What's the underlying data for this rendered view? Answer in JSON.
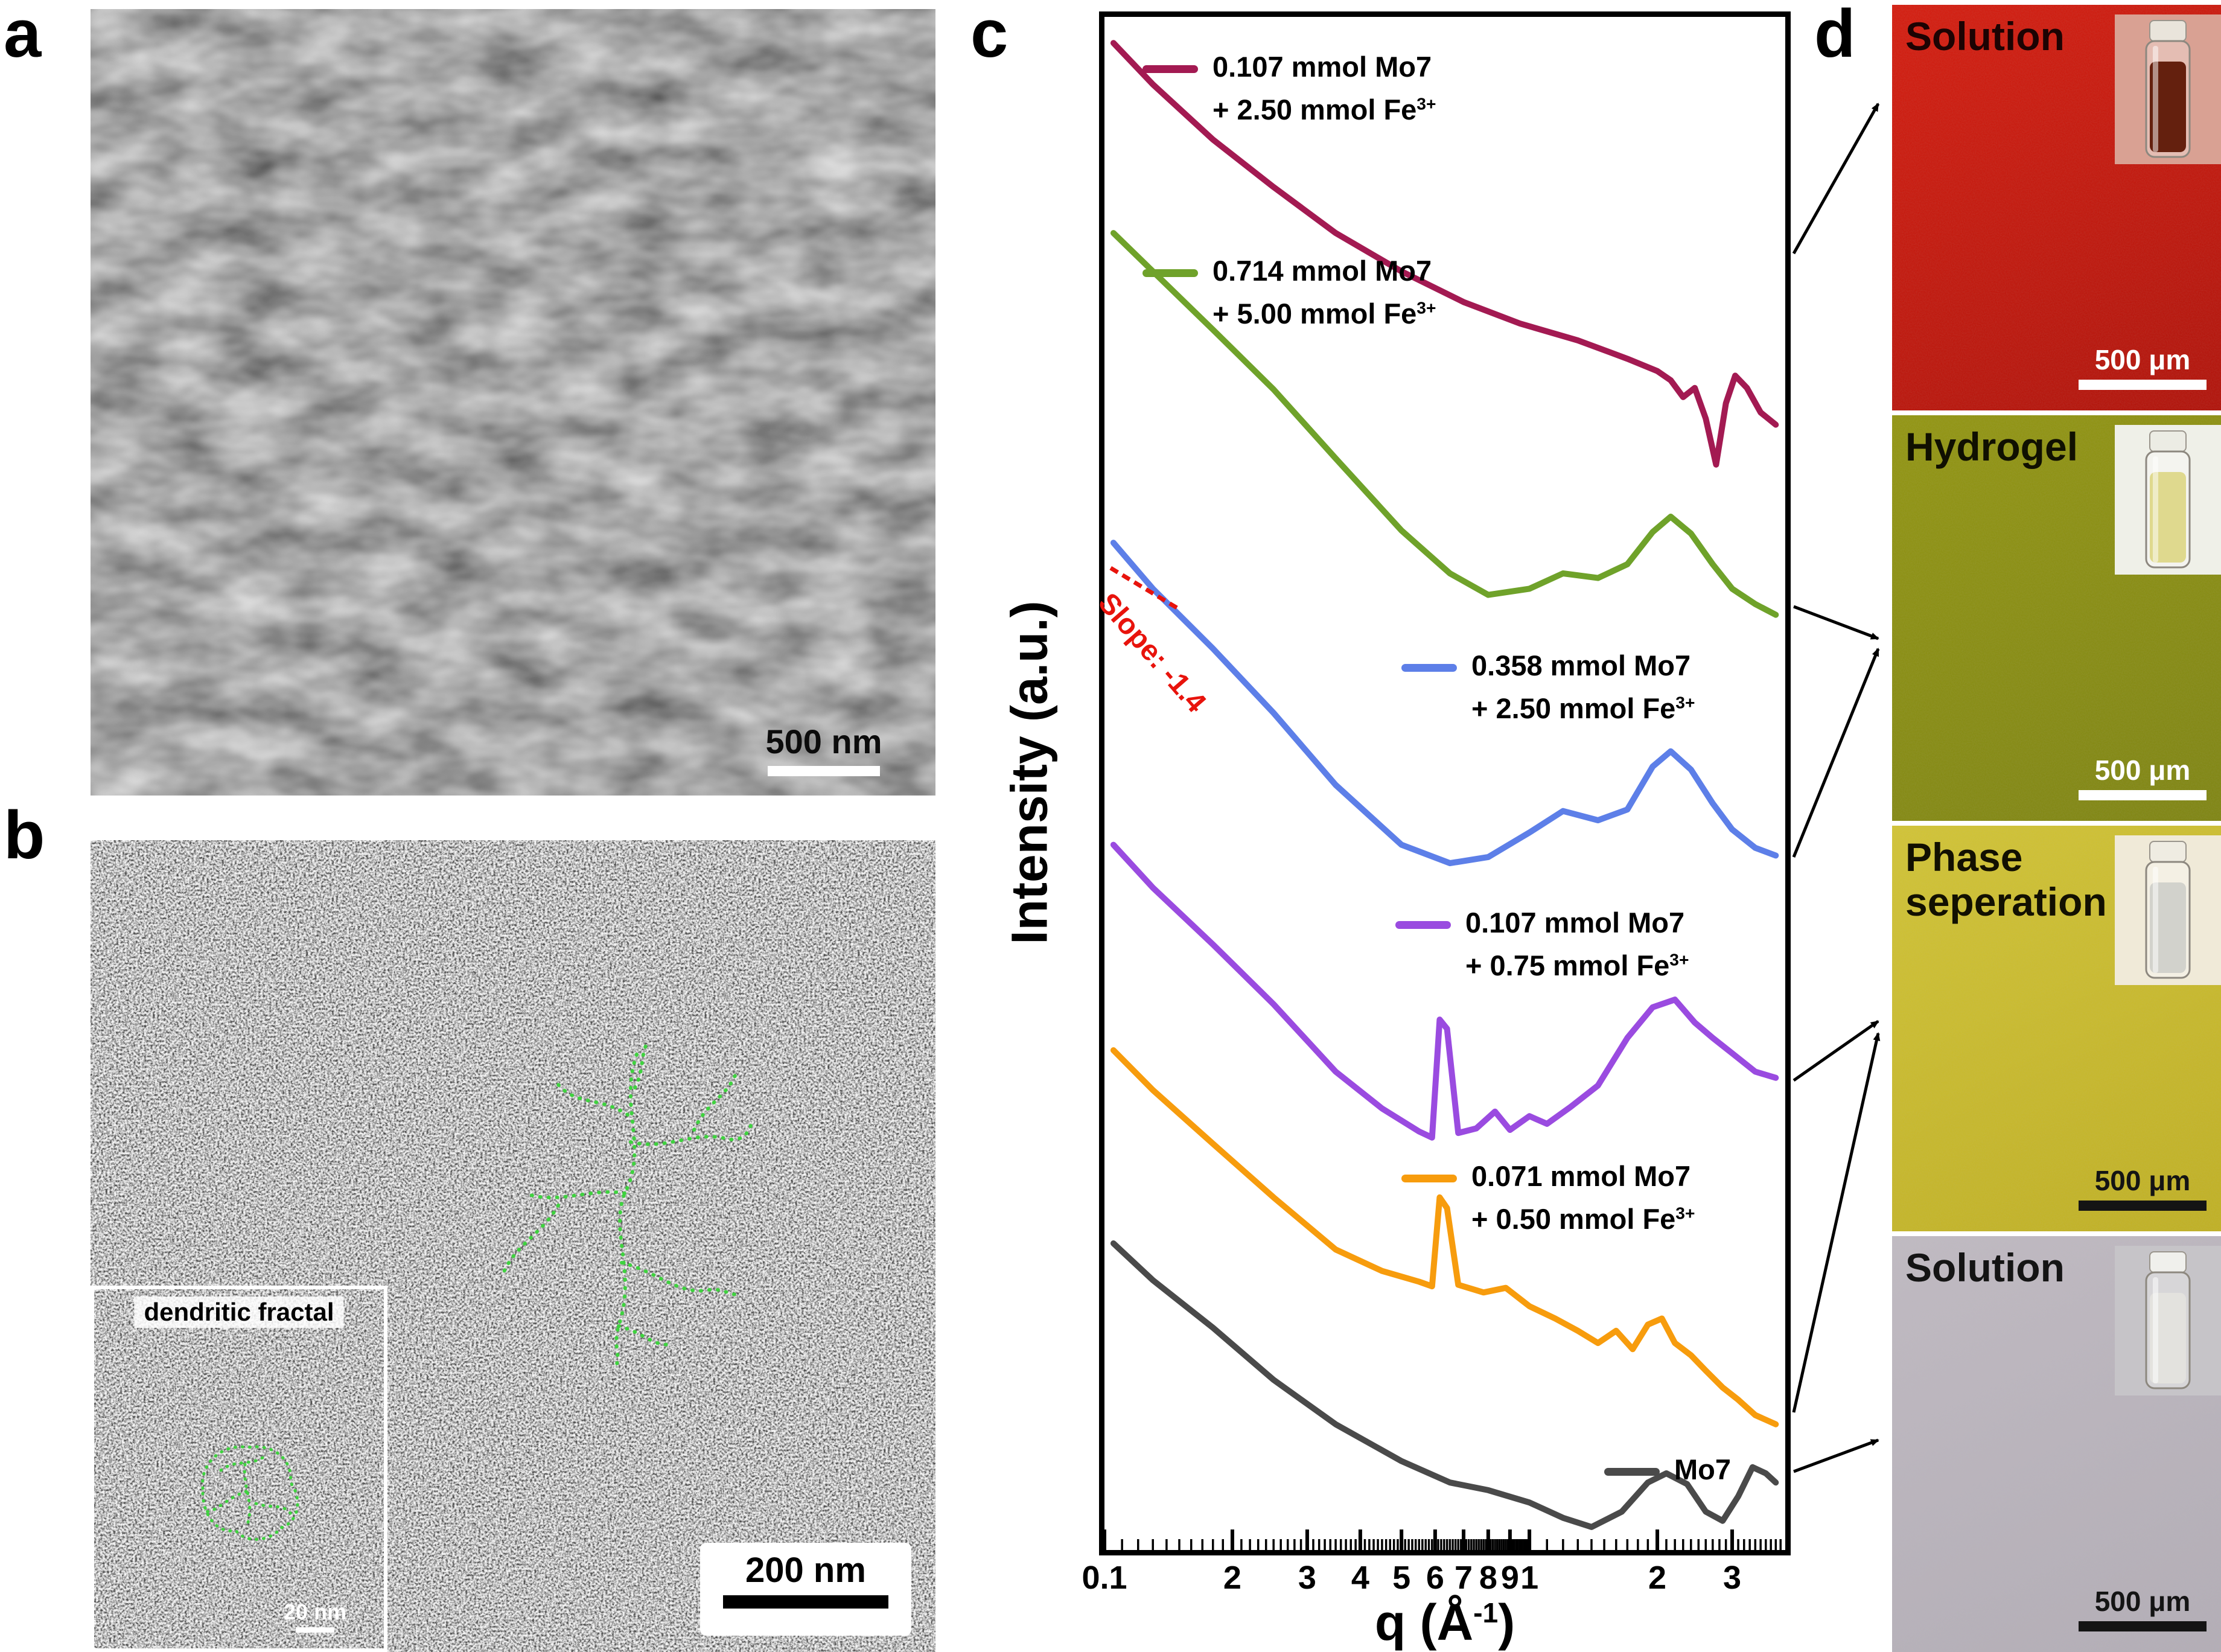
{
  "panel_labels": {
    "a": "a",
    "b": "b",
    "c": "c",
    "d": "d"
  },
  "panel_a": {
    "scalebar": "500 nm"
  },
  "panel_b": {
    "scalebar": "200 nm",
    "inset_title": "dendritic fractal",
    "inset_scalebar": "20 nm"
  },
  "chart_data": {
    "type": "line",
    "xscale": "log",
    "xlim": [
      0.1,
      4.0
    ],
    "xlabel": "q (Å⁻¹)",
    "xlabel_parts": {
      "prefix": "q (Å",
      "sup": "-1",
      "suffix": ")"
    },
    "ylabel": "Intensity (a.u.)",
    "grid": false,
    "ylim_note": "Intensity axis is arbitrary units with no ticks; y values are relative heights 0-100 within the plot, curves vertically offset as drawn",
    "annotation": {
      "text": "Slope: -1.4",
      "color": "#e8130c"
    },
    "x_ticks": [
      {
        "q": 0.1,
        "label": "0.1"
      },
      {
        "q": 0.2,
        "label": "2"
      },
      {
        "q": 0.3,
        "label": "3"
      },
      {
        "q": 0.4,
        "label": "4"
      },
      {
        "q": 0.5,
        "label": "5"
      },
      {
        "q": 0.6,
        "label": "6"
      },
      {
        "q": 0.7,
        "label": "7"
      },
      {
        "q": 0.8,
        "label": "8"
      },
      {
        "q": 0.9,
        "label": "9"
      },
      {
        "q": 1.0,
        "label": "1"
      },
      {
        "q": 2.0,
        "label": "2"
      },
      {
        "q": 3.0,
        "label": "3"
      }
    ],
    "series": [
      {
        "id": "mo107-fe250",
        "name": "0.107 mmol Mo7 + 2.50 mmol Fe3+",
        "legend_line1": "0.107 mmol Mo7",
        "legend_line2": "+ 2.50 mmol Fe",
        "legend_sup": "3+",
        "color": "#a31a52",
        "points": [
          [
            0.105,
            98.3
          ],
          [
            0.13,
            95.6
          ],
          [
            0.18,
            92.0
          ],
          [
            0.25,
            88.9
          ],
          [
            0.35,
            85.9
          ],
          [
            0.5,
            83.4
          ],
          [
            0.7,
            81.4
          ],
          [
            0.95,
            80.0
          ],
          [
            1.3,
            78.9
          ],
          [
            1.7,
            77.7
          ],
          [
            2.0,
            76.9
          ],
          [
            2.15,
            76.3
          ],
          [
            2.3,
            75.2
          ],
          [
            2.45,
            75.8
          ],
          [
            2.6,
            73.8
          ],
          [
            2.75,
            70.8
          ],
          [
            2.9,
            74.8
          ],
          [
            3.05,
            76.6
          ],
          [
            3.25,
            75.8
          ],
          [
            3.5,
            74.2
          ],
          [
            3.8,
            73.4
          ]
        ]
      },
      {
        "id": "mo714-fe500",
        "name": "0.714 mmol Mo7 + 5.00 mmol Fe3+",
        "legend_line1": "0.714 mmol Mo7",
        "legend_line2": "+ 5.00 mmol Fe",
        "legend_sup": "3+",
        "color": "#6fa22a",
        "points": [
          [
            0.105,
            85.9
          ],
          [
            0.13,
            83.4
          ],
          [
            0.18,
            79.6
          ],
          [
            0.25,
            75.7
          ],
          [
            0.35,
            71.2
          ],
          [
            0.5,
            66.5
          ],
          [
            0.65,
            63.7
          ],
          [
            0.8,
            62.3
          ],
          [
            1.0,
            62.7
          ],
          [
            1.2,
            63.7
          ],
          [
            1.45,
            63.4
          ],
          [
            1.7,
            64.3
          ],
          [
            1.95,
            66.4
          ],
          [
            2.15,
            67.4
          ],
          [
            2.4,
            66.3
          ],
          [
            2.7,
            64.3
          ],
          [
            3.0,
            62.7
          ],
          [
            3.4,
            61.7
          ],
          [
            3.8,
            61.0
          ]
        ]
      },
      {
        "id": "mo358-fe250",
        "name": "0.358 mmol Mo7 + 2.50 mmol Fe3+",
        "legend_line1": "0.358 mmol Mo7",
        "legend_line2": "+ 2.50 mmol Fe",
        "legend_sup": "3+",
        "color": "#5d7fe8",
        "points": [
          [
            0.105,
            65.7
          ],
          [
            0.13,
            62.7
          ],
          [
            0.18,
            58.8
          ],
          [
            0.25,
            54.6
          ],
          [
            0.35,
            49.9
          ],
          [
            0.5,
            46.0
          ],
          [
            0.65,
            44.8
          ],
          [
            0.8,
            45.2
          ],
          [
            1.0,
            46.8
          ],
          [
            1.2,
            48.2
          ],
          [
            1.45,
            47.6
          ],
          [
            1.7,
            48.3
          ],
          [
            1.95,
            51.1
          ],
          [
            2.15,
            52.1
          ],
          [
            2.4,
            50.9
          ],
          [
            2.7,
            48.7
          ],
          [
            3.0,
            47.0
          ],
          [
            3.4,
            45.8
          ],
          [
            3.8,
            45.3
          ]
        ]
      },
      {
        "id": "mo107-fe075",
        "name": "0.107 mmol Mo7 + 0.75 mmol Fe3+",
        "legend_line1": "0.107 mmol Mo7",
        "legend_line2": "+ 0.75 mmol Fe",
        "legend_sup": "3+",
        "color": "#9a4be0",
        "points": [
          [
            0.105,
            46.0
          ],
          [
            0.13,
            43.2
          ],
          [
            0.18,
            39.5
          ],
          [
            0.25,
            35.6
          ],
          [
            0.35,
            31.2
          ],
          [
            0.45,
            28.8
          ],
          [
            0.55,
            27.3
          ],
          [
            0.59,
            26.9
          ],
          [
            0.615,
            34.6
          ],
          [
            0.64,
            34.0
          ],
          [
            0.68,
            27.2
          ],
          [
            0.75,
            27.5
          ],
          [
            0.83,
            28.6
          ],
          [
            0.9,
            27.4
          ],
          [
            1.0,
            28.3
          ],
          [
            1.1,
            27.8
          ],
          [
            1.25,
            28.9
          ],
          [
            1.45,
            30.3
          ],
          [
            1.7,
            33.4
          ],
          [
            1.95,
            35.4
          ],
          [
            2.2,
            35.9
          ],
          [
            2.45,
            34.4
          ],
          [
            2.7,
            33.4
          ],
          [
            3.0,
            32.4
          ],
          [
            3.4,
            31.2
          ],
          [
            3.8,
            30.8
          ]
        ]
      },
      {
        "id": "mo071-fe050",
        "name": "0.071 mmol Mo7 + 0.50 mmol Fe3+",
        "legend_line1": "0.071 mmol Mo7",
        "legend_line2": "+ 0.50 mmol Fe",
        "legend_sup": "3+",
        "color": "#f79c0d",
        "points": [
          [
            0.105,
            32.6
          ],
          [
            0.13,
            30.0
          ],
          [
            0.18,
            26.5
          ],
          [
            0.25,
            23.0
          ],
          [
            0.35,
            19.6
          ],
          [
            0.45,
            18.2
          ],
          [
            0.55,
            17.5
          ],
          [
            0.59,
            17.2
          ],
          [
            0.615,
            23.0
          ],
          [
            0.64,
            22.3
          ],
          [
            0.68,
            17.3
          ],
          [
            0.78,
            16.8
          ],
          [
            0.88,
            17.1
          ],
          [
            1.0,
            15.9
          ],
          [
            1.15,
            15.1
          ],
          [
            1.3,
            14.3
          ],
          [
            1.45,
            13.5
          ],
          [
            1.6,
            14.3
          ],
          [
            1.75,
            13.1
          ],
          [
            1.9,
            14.7
          ],
          [
            2.05,
            15.1
          ],
          [
            2.2,
            13.5
          ],
          [
            2.4,
            12.7
          ],
          [
            2.6,
            11.7
          ],
          [
            2.85,
            10.6
          ],
          [
            3.1,
            9.8
          ],
          [
            3.4,
            8.8
          ],
          [
            3.8,
            8.2
          ]
        ]
      },
      {
        "id": "mo7",
        "name": "Mo7",
        "legend_line1": "Mo7",
        "legend_line2": "",
        "legend_sup": "",
        "color": "#4a4a4a",
        "points": [
          [
            0.105,
            20.0
          ],
          [
            0.13,
            17.6
          ],
          [
            0.18,
            14.5
          ],
          [
            0.25,
            11.1
          ],
          [
            0.35,
            8.2
          ],
          [
            0.5,
            5.8
          ],
          [
            0.65,
            4.4
          ],
          [
            0.8,
            3.9
          ],
          [
            1.0,
            3.1
          ],
          [
            1.2,
            2.1
          ],
          [
            1.4,
            1.5
          ],
          [
            1.65,
            2.5
          ],
          [
            1.9,
            4.4
          ],
          [
            2.1,
            5.0
          ],
          [
            2.35,
            4.3
          ],
          [
            2.6,
            2.5
          ],
          [
            2.85,
            1.9
          ],
          [
            3.1,
            3.5
          ],
          [
            3.35,
            5.4
          ],
          [
            3.6,
            5.0
          ],
          [
            3.8,
            4.4
          ]
        ]
      }
    ],
    "connections": [
      {
        "series": "0.107 mmol Mo7 + 2.50 mmol Fe3+",
        "image": "Solution (red)"
      },
      {
        "series": "0.714 mmol Mo7 + 5.00 mmol Fe3+",
        "image": "Hydrogel"
      },
      {
        "series": "0.358 mmol Mo7 + 2.50 mmol Fe3+",
        "image": "Hydrogel"
      },
      {
        "series": "0.107 mmol Mo7 + 0.75 mmol Fe3+",
        "image": "Phase seperation"
      },
      {
        "series": "0.071 mmol Mo7 + 0.50 mmol Fe3+",
        "image": "Phase seperation"
      },
      {
        "series": "Mo7",
        "image": "Solution (bottom)"
      }
    ]
  },
  "d_images": [
    {
      "title": "Solution",
      "title_line1": "Solution",
      "title_line2": "",
      "scalebar": "500 μm",
      "bg": "#d51a0c",
      "bg2": "#b01007",
      "label_color": "#1c0303",
      "scalebar_color": "#ffffff",
      "vial": {
        "bg": "#d9a193",
        "liquid": "#64200e",
        "cap": "#e9e4db"
      }
    },
    {
      "title": "Hydrogel",
      "title_line1": "Hydrogel",
      "title_line2": "",
      "scalebar": "500 μm",
      "bg": "#92950f",
      "bg2": "#7e8410",
      "label_color": "#101001",
      "scalebar_color": "#ffffff",
      "vial": {
        "bg": "#eff0e8",
        "liquid": "#dfd98e",
        "cap": "#ecece4"
      }
    },
    {
      "title": "Phase seperation",
      "title_line1": "Phase",
      "title_line2": "seperation",
      "scalebar": "500 μm",
      "bg": "#d2c433",
      "bg2": "#c0b021",
      "label_color": "#121001",
      "scalebar_color": "#141414",
      "vial": {
        "bg": "#f0ead8",
        "liquid": "#d2d2cc",
        "cap": "#efece2"
      }
    },
    {
      "title": "Solution",
      "title_line1": "Solution",
      "title_line2": "",
      "scalebar": "500 μm",
      "bg": "#c0bac2",
      "bg2": "#b3adb6",
      "label_color": "#141414",
      "scalebar_color": "#141414",
      "vial": {
        "bg": "#c6c4c8",
        "liquid": "#e3e2de",
        "cap": "#f0f0ec"
      }
    }
  ]
}
